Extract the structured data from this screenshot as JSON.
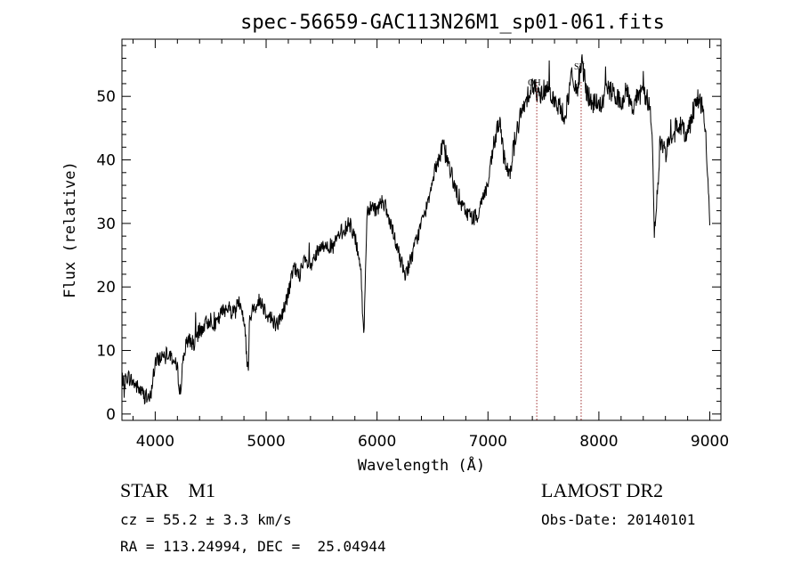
{
  "chart_data": {
    "type": "line",
    "title": "spec-56659-GAC113N26M1_sp01-061.fits",
    "xlabel": "Wavelength (Å)",
    "ylabel": "Flux (relative)",
    "xlim": [
      3700,
      9100
    ],
    "ylim": [
      -1,
      59
    ],
    "xticks": [
      4000,
      5000,
      6000,
      7000,
      8000,
      9000
    ],
    "yticks": [
      0,
      10,
      20,
      30,
      40,
      50
    ],
    "grid": false,
    "line_color": "#000000",
    "marker_color": "#a03030",
    "markers": [
      {
        "label": "OH",
        "x": 7440
      },
      {
        "label": "SII",
        "x": 7840
      }
    ],
    "x": [
      3700,
      3750,
      3800,
      3850,
      3900,
      3950,
      4000,
      4050,
      4100,
      4150,
      4200,
      4230,
      4250,
      4300,
      4350,
      4400,
      4450,
      4500,
      4550,
      4600,
      4650,
      4700,
      4750,
      4800,
      4840,
      4850,
      4900,
      4950,
      5000,
      5050,
      5100,
      5150,
      5200,
      5250,
      5300,
      5350,
      5400,
      5450,
      5500,
      5550,
      5600,
      5650,
      5700,
      5750,
      5800,
      5850,
      5880,
      5895,
      5910,
      5950,
      6000,
      6050,
      6100,
      6150,
      6200,
      6250,
      6300,
      6350,
      6400,
      6450,
      6500,
      6550,
      6600,
      6650,
      6700,
      6750,
      6800,
      6850,
      6900,
      6950,
      7000,
      7050,
      7100,
      7150,
      7200,
      7250,
      7300,
      7350,
      7400,
      7450,
      7500,
      7550,
      7600,
      7650,
      7700,
      7750,
      7800,
      7850,
      7900,
      7950,
      8000,
      8050,
      8100,
      8150,
      8200,
      8250,
      8300,
      8350,
      8400,
      8450,
      8480,
      8500,
      8540,
      8550,
      8600,
      8650,
      8662,
      8700,
      8750,
      8800,
      8850,
      8900,
      8950,
      8980,
      9000
    ],
    "values": [
      4,
      6,
      5,
      4,
      3,
      2,
      8,
      9,
      10,
      9,
      7,
      3,
      9,
      12,
      11,
      13,
      14,
      15,
      14,
      16,
      17,
      16,
      18,
      15,
      6,
      15,
      17,
      18,
      16,
      15,
      14,
      16,
      19,
      23,
      22,
      24,
      23,
      25,
      26,
      27,
      26,
      28,
      29,
      30,
      28,
      24,
      12,
      22,
      32,
      33,
      32,
      34,
      31,
      28,
      25,
      22,
      24,
      27,
      30,
      33,
      37,
      40,
      42,
      39,
      36,
      33,
      32,
      31,
      31,
      34,
      36,
      42,
      46,
      40,
      38,
      44,
      47,
      50,
      52,
      50,
      51,
      52,
      49,
      48,
      47,
      53,
      51,
      55,
      50,
      49,
      48,
      50,
      51,
      50,
      49,
      51,
      48,
      50,
      51,
      49,
      45,
      28,
      38,
      43,
      41,
      45,
      42,
      46,
      45,
      44,
      48,
      50,
      47,
      38,
      30
    ]
  },
  "info": {
    "object": "STAR    M1",
    "survey": "LAMOST DR2",
    "cz": "cz = 55.2 ± 3.3 km/s",
    "obs_date": "Obs-Date: 20140101",
    "coords": "RA = 113.24994, DEC =  25.04944"
  }
}
